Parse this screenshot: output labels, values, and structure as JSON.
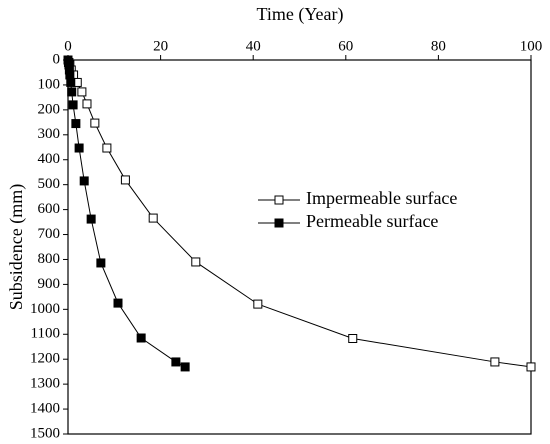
{
  "chart_data": {
    "type": "line",
    "x_label": "Time (Year)",
    "y_label": "Subsidence (mm)",
    "x_axis_position": "top",
    "y_inverted": true,
    "xlim": [
      0,
      100
    ],
    "xticks": [
      0,
      20,
      40,
      60,
      80,
      100
    ],
    "ylim": [
      0,
      1500
    ],
    "yticks": [
      0,
      100,
      200,
      300,
      400,
      500,
      600,
      700,
      800,
      900,
      1000,
      1100,
      1200,
      1300,
      1400,
      1500
    ],
    "legend": "right",
    "series": [
      {
        "name": "Impermeable surface",
        "color": "#000000",
        "marker_fill": "#ffffff",
        "x": [
          0,
          0.2,
          0.4,
          0.7,
          1.2,
          2.0,
          3.0,
          4.1,
          5.8,
          8.4,
          12.4,
          18.4,
          27.6,
          41.0,
          61.5,
          92.2,
          100
        ],
        "values": [
          0,
          10,
          20,
          40,
          60,
          90,
          128,
          176,
          253,
          353,
          481,
          634,
          810,
          979,
          1117,
          1211,
          1231
        ]
      },
      {
        "name": "Permeable surface",
        "color": "#000000",
        "marker_fill": "#000000",
        "x": [
          0,
          0.1,
          0.2,
          0.3,
          0.4,
          0.6,
          0.8,
          1.1,
          1.7,
          2.4,
          3.5,
          5.0,
          7.1,
          10.8,
          15.8,
          23.3,
          25.3
        ],
        "values": [
          0,
          10,
          20,
          40,
          60,
          90,
          128,
          180,
          255,
          353,
          485,
          638,
          814,
          975,
          1115,
          1211,
          1231
        ]
      }
    ]
  }
}
